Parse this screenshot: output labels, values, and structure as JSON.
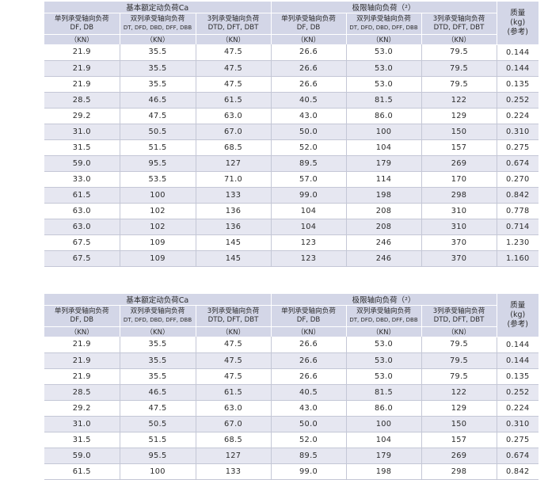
{
  "header": {
    "group_dynamic": "基本额定动负荷Ca",
    "group_axial": "极限轴向负荷（²）",
    "col_single": [
      "单列承受轴向负荷",
      "DF, DB"
    ],
    "col_double": [
      "双列承受轴向负荷",
      "DT, DFD, DBD, DFF, DBB"
    ],
    "col_triple": [
      "3列承受轴向负荷",
      "DTD, DFT, DBT"
    ],
    "mass": [
      "质量",
      "(kg)",
      "(参考)"
    ],
    "unit": "（KN）"
  },
  "table_1": {
    "rows": [
      [
        "21.9",
        "35.5",
        "47.5",
        "26.6",
        "53.0",
        "79.5",
        "0.144"
      ],
      [
        "21.9",
        "35.5",
        "47.5",
        "26.6",
        "53.0",
        "79.5",
        "0.144"
      ],
      [
        "21.9",
        "35.5",
        "47.5",
        "26.6",
        "53.0",
        "79.5",
        "0.135"
      ],
      [
        "28.5",
        "46.5",
        "61.5",
        "40.5",
        "81.5",
        "122",
        "0.252"
      ],
      [
        "29.2",
        "47.5",
        "63.0",
        "43.0",
        "86.0",
        "129",
        "0.224"
      ],
      [
        "31.0",
        "50.5",
        "67.0",
        "50.0",
        "100",
        "150",
        "0.310"
      ],
      [
        "31.5",
        "51.5",
        "68.5",
        "52.0",
        "104",
        "157",
        "0.275"
      ],
      [
        "59.0",
        "95.5",
        "127",
        "89.5",
        "179",
        "269",
        "0.674"
      ],
      [
        "33.0",
        "53.5",
        "71.0",
        "57.0",
        "114",
        "170",
        "0.270"
      ],
      [
        "61.5",
        "100",
        "133",
        "99.0",
        "198",
        "298",
        "0.842"
      ],
      [
        "63.0",
        "102",
        "136",
        "104",
        "208",
        "310",
        "0.778"
      ],
      [
        "63.0",
        "102",
        "136",
        "104",
        "208",
        "310",
        "0.714"
      ],
      [
        "67.5",
        "109",
        "145",
        "123",
        "246",
        "370",
        "1.230"
      ],
      [
        "67.5",
        "109",
        "145",
        "123",
        "246",
        "370",
        "1.160"
      ]
    ]
  },
  "table_2": {
    "rows": [
      [
        "21.9",
        "35.5",
        "47.5",
        "26.6",
        "53.0",
        "79.5",
        "0.144"
      ],
      [
        "21.9",
        "35.5",
        "47.5",
        "26.6",
        "53.0",
        "79.5",
        "0.144"
      ],
      [
        "21.9",
        "35.5",
        "47.5",
        "26.6",
        "53.0",
        "79.5",
        "0.135"
      ],
      [
        "28.5",
        "46.5",
        "61.5",
        "40.5",
        "81.5",
        "122",
        "0.252"
      ],
      [
        "29.2",
        "47.5",
        "63.0",
        "43.0",
        "86.0",
        "129",
        "0.224"
      ],
      [
        "31.0",
        "50.5",
        "67.0",
        "50.0",
        "100",
        "150",
        "0.310"
      ],
      [
        "31.5",
        "51.5",
        "68.5",
        "52.0",
        "104",
        "157",
        "0.275"
      ],
      [
        "59.0",
        "95.5",
        "127",
        "89.5",
        "179",
        "269",
        "0.674"
      ],
      [
        "61.5",
        "100",
        "133",
        "99.0",
        "198",
        "298",
        "0.842"
      ]
    ]
  },
  "colors": {
    "header_bg": "#d3d6e7",
    "row_shade": "#e6e7f1",
    "grid_line": "#c4c7d6",
    "text": "#2b2b2b"
  }
}
